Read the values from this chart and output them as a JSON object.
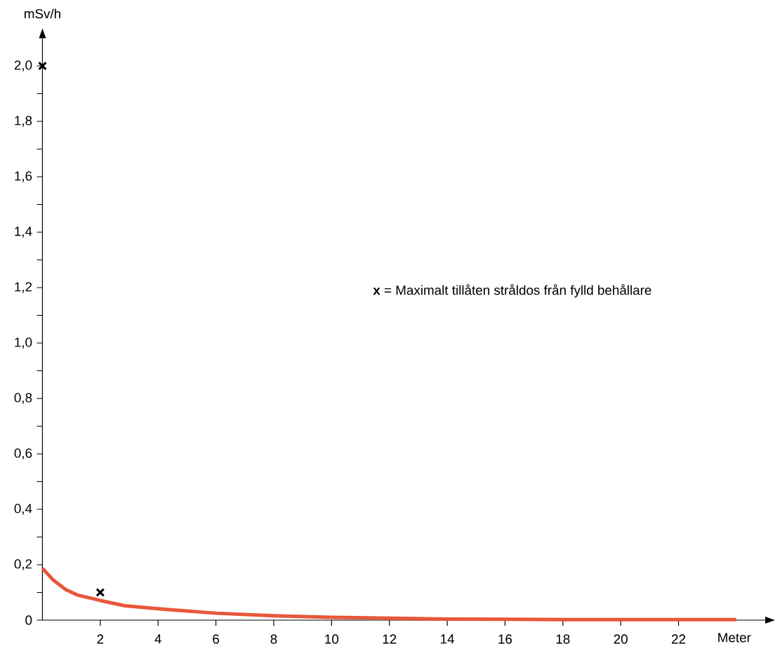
{
  "chart_data": {
    "type": "line",
    "xlabel": "Meter",
    "ylabel": "mSv/h",
    "xlim": [
      0,
      25
    ],
    "ylim": [
      0,
      2.1
    ],
    "xticks": [
      2,
      4,
      6,
      8,
      10,
      12,
      14,
      16,
      18,
      20,
      22
    ],
    "yticks": [
      0,
      {
        "value": 0.1,
        "label": null
      },
      {
        "value": 0.2,
        "label": "0,2"
      },
      {
        "value": 0.3,
        "label": null
      },
      {
        "value": 0.4,
        "label": "0,4"
      },
      {
        "value": 0.5,
        "label": null
      },
      {
        "value": 0.6,
        "label": "0,6"
      },
      {
        "value": 0.7,
        "label": null
      },
      {
        "value": 0.8,
        "label": "0,8"
      },
      {
        "value": 0.9,
        "label": null
      },
      {
        "value": 1.0,
        "label": "1,0"
      },
      {
        "value": 1.1,
        "label": null
      },
      {
        "value": 1.2,
        "label": "1,2"
      },
      {
        "value": 1.3,
        "label": null
      },
      {
        "value": 1.4,
        "label": "1,4"
      },
      {
        "value": 1.5,
        "label": null
      },
      {
        "value": 1.6,
        "label": "1,6"
      },
      {
        "value": 1.7,
        "label": null
      },
      {
        "value": 1.8,
        "label": "1,8"
      },
      {
        "value": 1.9,
        "label": null
      },
      {
        "value": 2.0,
        "label": "2,0"
      }
    ],
    "series": [
      {
        "color": "#e8573a",
        "marker": "none",
        "x": [
          0,
          0.35,
          0.8,
          1.2,
          2,
          2.85,
          4,
          6,
          8,
          10,
          12,
          14,
          16,
          18,
          20,
          22,
          24
        ],
        "values": [
          0.187,
          0.147,
          0.111,
          0.091,
          0.071,
          0.052,
          0.041,
          0.025,
          0.016,
          0.01,
          0.007,
          0.004,
          0.003,
          0.002,
          0.002,
          0.002,
          0.002
        ]
      },
      {
        "type": "scatter",
        "color": "#000000",
        "marker": "cross",
        "x": [
          0,
          2
        ],
        "values": [
          2.0,
          0.1
        ]
      }
    ],
    "annotations": [
      "**x** = Maximalt tillåten stråldos från fylld behållare"
    ]
  }
}
